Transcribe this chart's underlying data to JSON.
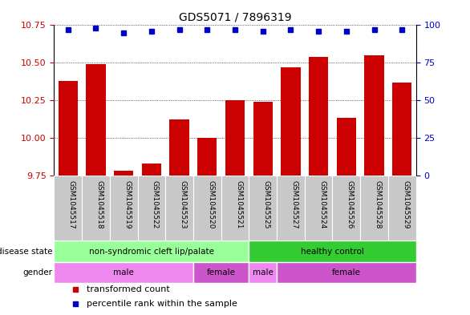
{
  "title": "GDS5071 / 7896319",
  "samples": [
    "GSM1045517",
    "GSM1045518",
    "GSM1045519",
    "GSM1045522",
    "GSM1045523",
    "GSM1045520",
    "GSM1045521",
    "GSM1045525",
    "GSM1045527",
    "GSM1045524",
    "GSM1045526",
    "GSM1045528",
    "GSM1045529"
  ],
  "transformed_count": [
    10.38,
    10.49,
    9.78,
    9.83,
    10.12,
    10.0,
    10.25,
    10.24,
    10.47,
    10.54,
    10.13,
    10.55,
    10.37
  ],
  "percentile_rank": [
    97,
    98,
    95,
    96,
    97,
    97,
    97,
    96,
    97,
    96,
    96,
    97,
    97
  ],
  "ylim_left": [
    9.75,
    10.75
  ],
  "ylim_right": [
    0,
    100
  ],
  "yticks_left": [
    9.75,
    10.0,
    10.25,
    10.5,
    10.75
  ],
  "yticks_right": [
    0,
    25,
    50,
    75,
    100
  ],
  "bar_color": "#CC0000",
  "dot_color": "#0000CC",
  "disease_state_groups": [
    {
      "label": "non-syndromic cleft lip/palate",
      "start": 0,
      "end": 7,
      "color": "#99FF99"
    },
    {
      "label": "healthy control",
      "start": 7,
      "end": 13,
      "color": "#33CC33"
    }
  ],
  "gender_groups": [
    {
      "label": "male",
      "start": 0,
      "end": 5,
      "color": "#EE88EE"
    },
    {
      "label": "female",
      "start": 5,
      "end": 7,
      "color": "#CC55CC"
    },
    {
      "label": "male",
      "start": 7,
      "end": 8,
      "color": "#EE88EE"
    },
    {
      "label": "female",
      "start": 8,
      "end": 13,
      "color": "#CC55CC"
    }
  ],
  "ylabel_left_color": "#CC0000",
  "ylabel_right_color": "#0000CC",
  "background_color": "#FFFFFF",
  "tick_bg": "#C8C8C8",
  "label_left_disease": "disease state",
  "label_left_gender": "gender",
  "legend_items": [
    {
      "color": "#CC0000",
      "label": "transformed count"
    },
    {
      "color": "#0000CC",
      "label": "percentile rank within the sample"
    }
  ]
}
